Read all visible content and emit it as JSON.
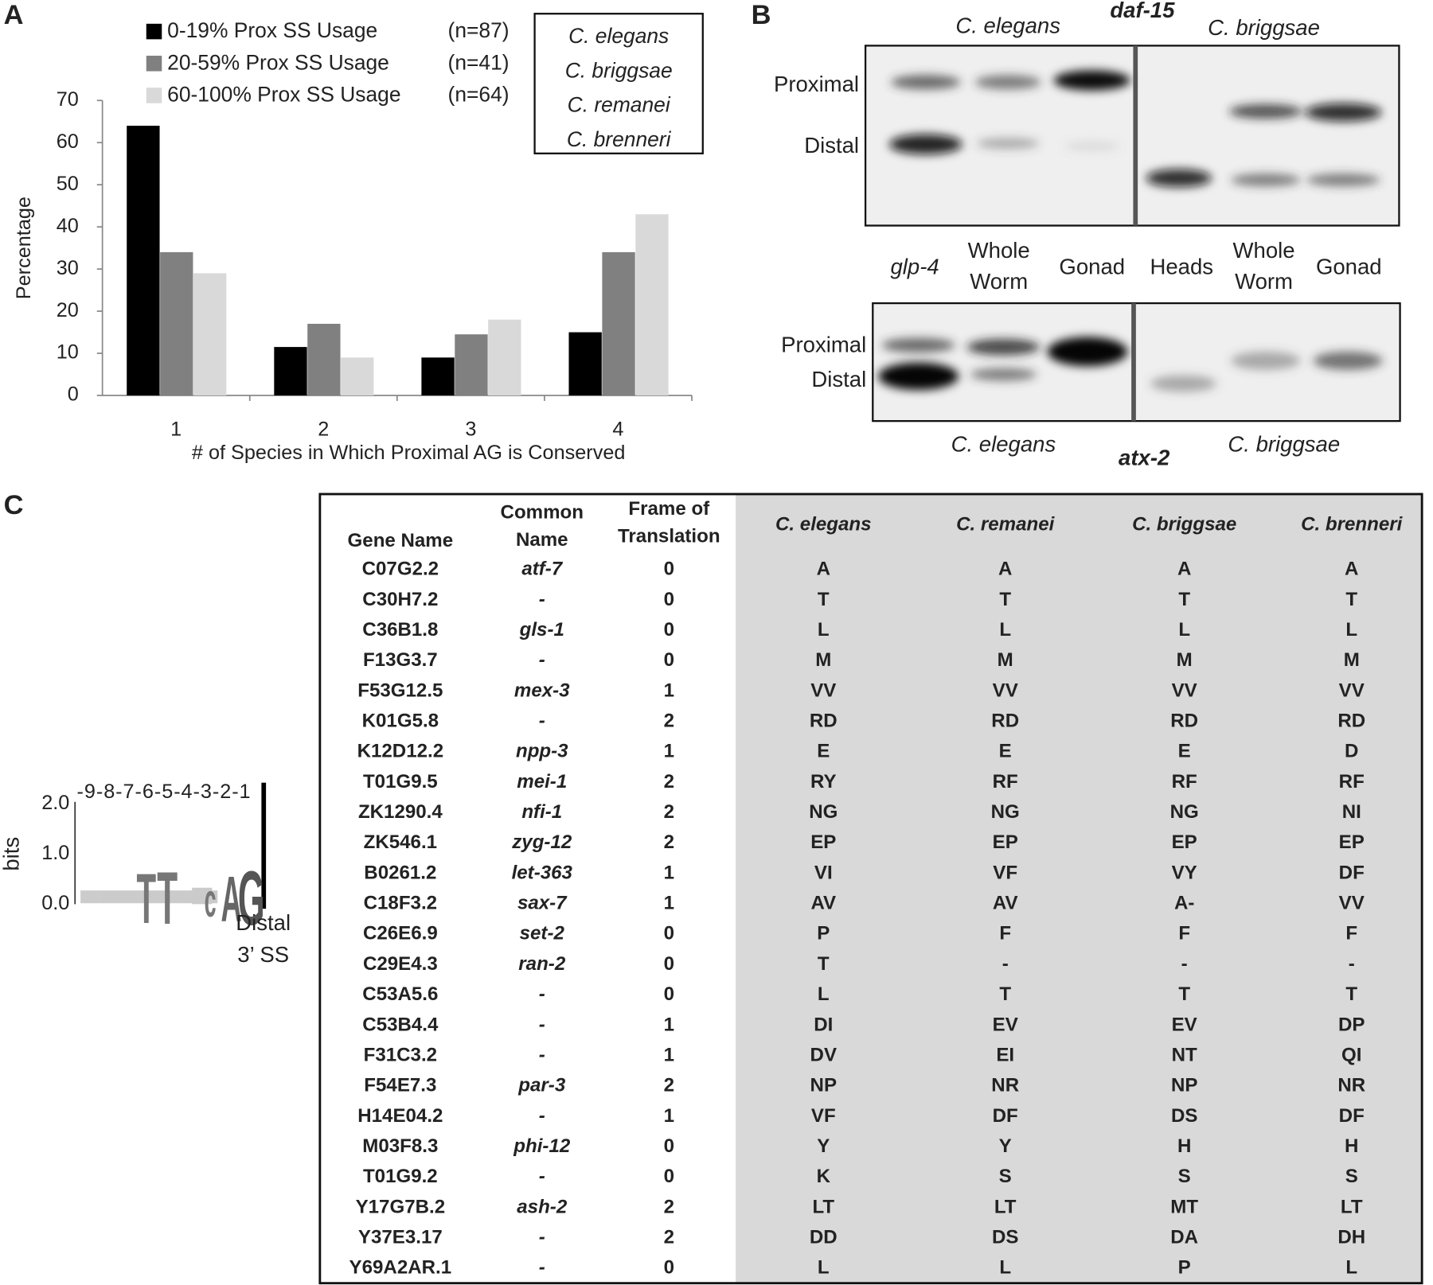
{
  "chart_data": {
    "type": "bar",
    "panel_label": "A",
    "y_label": "Percentage",
    "x_label": "# of Species in Which Proximal AG is Conserved",
    "categories": [
      "1",
      "2",
      "3",
      "4"
    ],
    "series": [
      {
        "name": "0-19% Prox SS Usage",
        "color": "#000000",
        "sample_size_label": "(n=87)",
        "values": [
          64,
          11.5,
          9,
          15
        ]
      },
      {
        "name": "20-59% Prox SS Usage",
        "color": "#808080",
        "sample_size_label": "(n=41)",
        "values": [
          34,
          17,
          14.5,
          34
        ]
      },
      {
        "name": "60-100% Prox SS Usage",
        "color": "#d9d9d9",
        "sample_size_label": "(n=64)",
        "values": [
          29,
          9,
          18,
          43
        ]
      }
    ],
    "species_box": [
      "C. elegans",
      "C. briggsae",
      "C. remanei",
      "C. brenneri"
    ],
    "ylim": [
      0,
      70
    ],
    "yticks": [
      0,
      10,
      20,
      30,
      40,
      50,
      60,
      70
    ],
    "grid": false
  },
  "panel_b": {
    "panel_label": "B",
    "top_gene": "daf-15",
    "top_species": [
      "C. elegans",
      "C. briggsae"
    ],
    "top_bands": [
      "Proximal",
      "Distal"
    ],
    "lanes": [
      [
        "glp-4"
      ],
      [
        "Whole",
        "Worm"
      ],
      [
        "Gonad"
      ],
      [
        "Heads"
      ],
      [
        "Whole",
        "Worm"
      ],
      [
        "Gonad"
      ]
    ],
    "bottom_bands": [
      "Proximal",
      "Distal"
    ],
    "bottom_species": [
      "C. elegans",
      "C. briggsae"
    ],
    "bottom_gene": "atx-2"
  },
  "panel_c": {
    "panel_label": "C",
    "logo": {
      "y_label": "bits",
      "yticks": [
        "2.0",
        "1.0",
        "0.0"
      ],
      "positions": "-9-8-7-6-5-4-3-2-1",
      "letters": [
        "T",
        "T",
        "c",
        "A",
        "G"
      ],
      "site_label": [
        "Distal",
        "3’ SS"
      ]
    },
    "table": {
      "headers": [
        [
          "Gene Name"
        ],
        [
          "Common",
          "Name"
        ],
        [
          "Frame of",
          "Translation"
        ],
        [
          "C. elegans"
        ],
        [
          "C. remanei"
        ],
        [
          "C. briggsae"
        ],
        [
          "C. brenneri"
        ]
      ],
      "rows": [
        [
          "C07G2.2",
          "atf-7",
          0,
          "A",
          "A",
          "A",
          "A"
        ],
        [
          "C30H7.2",
          "-",
          0,
          "T",
          "T",
          "T",
          "T"
        ],
        [
          "C36B1.8",
          "gls-1",
          0,
          "L",
          "L",
          "L",
          "L"
        ],
        [
          "F13G3.7",
          "-",
          0,
          "M",
          "M",
          "M",
          "M"
        ],
        [
          "F53G12.5",
          "mex-3",
          1,
          "VV",
          "VV",
          "VV",
          "VV"
        ],
        [
          "K01G5.8",
          "-",
          2,
          "RD",
          "RD",
          "RD",
          "RD"
        ],
        [
          "K12D12.2",
          "npp-3",
          1,
          "E",
          "E",
          "E",
          "D"
        ],
        [
          "T01G9.5",
          "mei-1",
          2,
          "RY",
          "RF",
          "RF",
          "RF"
        ],
        [
          "ZK1290.4",
          "nfi-1",
          2,
          "NG",
          "NG",
          "NG",
          "NI"
        ],
        [
          "ZK546.1",
          "zyg-12",
          2,
          "EP",
          "EP",
          "EP",
          "EP"
        ],
        [
          "B0261.2",
          "let-363",
          1,
          "VI",
          "VF",
          "VY",
          "DF"
        ],
        [
          "C18F3.2",
          "sax-7",
          1,
          "AV",
          "AV",
          "A-",
          "VV"
        ],
        [
          "C26E6.9",
          "set-2",
          0,
          "P",
          "F",
          "F",
          "F"
        ],
        [
          "C29E4.3",
          "ran-2",
          0,
          "T",
          "-",
          "-",
          "-"
        ],
        [
          "C53A5.6",
          "-",
          0,
          "L",
          "T",
          "T",
          "T"
        ],
        [
          "C53B4.4",
          "-",
          1,
          "DI",
          "EV",
          "EV",
          "DP"
        ],
        [
          "F31C3.2",
          "-",
          1,
          "DV",
          "EI",
          "NT",
          "QI"
        ],
        [
          "F54E7.3",
          "par-3",
          2,
          "NP",
          "NR",
          "NP",
          "NR"
        ],
        [
          "H14E04.2",
          "-",
          1,
          "VF",
          "DF",
          "DS",
          "DF"
        ],
        [
          "M03F8.3",
          "phi-12",
          0,
          "Y",
          "Y",
          "H",
          "H"
        ],
        [
          "T01G9.2",
          "-",
          0,
          "K",
          "S",
          "S",
          "S"
        ],
        [
          "Y17G7B.2",
          "ash-2",
          2,
          "LT",
          "LT",
          "MT",
          "LT"
        ],
        [
          "Y37E3.17",
          "-",
          2,
          "DD",
          "DS",
          "DA",
          "DH"
        ],
        [
          "Y69A2AR.1",
          "-",
          0,
          "L",
          "L",
          "P",
          "L"
        ]
      ]
    }
  }
}
